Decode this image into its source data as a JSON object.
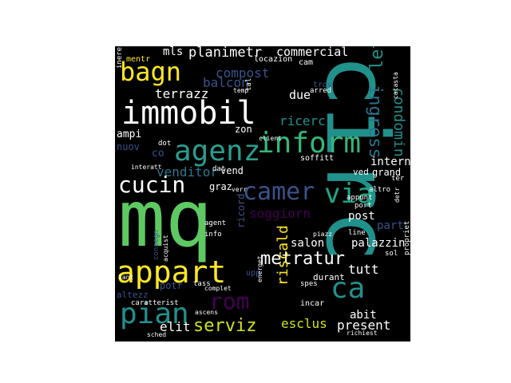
{
  "wordcloud": {
    "background": "#000000",
    "words": [
      {
        "text": "mq",
        "color": "#5ec962"
      },
      {
        "text": "circ",
        "color": "#21918c"
      },
      {
        "text": "immobil",
        "color": "#ffffff"
      },
      {
        "text": "agenz",
        "color": "#2a9d8f"
      },
      {
        "text": "inform",
        "color": "#35b779"
      },
      {
        "text": "appart",
        "color": "#fde725"
      },
      {
        "text": "pian",
        "color": "#21918c"
      },
      {
        "text": "bagn",
        "color": "#fde725"
      },
      {
        "text": "cucin",
        "color": "#ffffff"
      },
      {
        "text": "camer",
        "color": "#3b528b"
      },
      {
        "text": "via",
        "color": "#21a585"
      },
      {
        "text": "ca",
        "color": "#21918c"
      },
      {
        "text": "rom",
        "color": "#440154"
      },
      {
        "text": "metratur",
        "color": "#ffffff"
      },
      {
        "text": "serviz",
        "color": "#d2e21b"
      },
      {
        "text": "ingress",
        "color": "#2c728e"
      },
      {
        "text": "condomin",
        "color": "#21918c"
      },
      {
        "text": "riscald",
        "color": "#fde725"
      },
      {
        "text": "soggiorn",
        "color": "#440154"
      },
      {
        "text": "venditor",
        "color": "#2a788e"
      },
      {
        "text": "balcon",
        "color": "#3b528b"
      },
      {
        "text": "terrazz",
        "color": "#ffffff"
      },
      {
        "text": "planimetr",
        "color": "#ffffff"
      },
      {
        "text": "commercial",
        "color": "#ffffff"
      },
      {
        "text": "compost",
        "color": "#3b528b"
      },
      {
        "text": "due",
        "color": "#ffffff"
      },
      {
        "text": "ricerc",
        "color": "#21918c"
      },
      {
        "text": "letto",
        "color": "#21918c"
      },
      {
        "text": "esclus",
        "color": "#d2e21b"
      },
      {
        "text": "present",
        "color": "#ffffff"
      },
      {
        "text": "elit",
        "color": "#ffffff"
      },
      {
        "text": "salon",
        "color": "#ffffff"
      },
      {
        "text": "tutt",
        "color": "#ffffff"
      },
      {
        "text": "post",
        "color": "#ffffff"
      },
      {
        "text": "part",
        "color": "#3b528b"
      },
      {
        "text": "abit",
        "color": "#ffffff"
      },
      {
        "text": "palazzin",
        "color": "#ffffff"
      },
      {
        "text": "intern",
        "color": "#ffffff"
      },
      {
        "text": "grand",
        "color": "#ffffff"
      },
      {
        "text": "vend",
        "color": "#ffffff"
      },
      {
        "text": "graz",
        "color": "#ffffff"
      },
      {
        "text": "zon",
        "color": "#ffffff"
      },
      {
        "text": "ampi",
        "color": "#ffffff"
      },
      {
        "text": "nuov",
        "color": "#3b528b"
      },
      {
        "text": "co",
        "color": "#3b528b"
      },
      {
        "text": "potr",
        "color": "#3b528b"
      },
      {
        "text": "mls",
        "color": "#ffffff"
      },
      {
        "text": "altezz",
        "color": "#3b528b"
      },
      {
        "text": "durant",
        "color": "#ffffff"
      },
      {
        "text": "locazion",
        "color": "#ffffff"
      },
      {
        "text": "soffitt",
        "color": "#ffffff"
      },
      {
        "text": "ved",
        "color": "#ffffff"
      },
      {
        "text": "appunt",
        "color": "#ffffff"
      },
      {
        "text": "altro",
        "color": "#ffffff"
      },
      {
        "text": "port",
        "color": "#ffffff"
      },
      {
        "text": "line",
        "color": "#ffffff"
      },
      {
        "text": "ricord",
        "color": "#3b528b"
      },
      {
        "text": "cam",
        "color": "#ffffff"
      },
      {
        "text": "trov",
        "color": "#3b528b"
      },
      {
        "text": "incar",
        "color": "#ffffff"
      },
      {
        "text": "spes",
        "color": "#ffffff"
      },
      {
        "text": "propriet",
        "color": "#ffffff"
      },
      {
        "text": "caratterist",
        "color": "#ffffff"
      },
      {
        "text": "agent",
        "color": "#ffffff"
      },
      {
        "text": "info",
        "color": "#ffffff"
      },
      {
        "text": "consegn",
        "color": "#3b528b"
      },
      {
        "text": "acquist",
        "color": "#ffffff"
      },
      {
        "text": "client",
        "color": "#ffffff"
      },
      {
        "text": "interatt",
        "color": "#ffffff"
      },
      {
        "text": "dat",
        "color": "#ffffff"
      },
      {
        "text": "verr",
        "color": "#ffffff"
      },
      {
        "text": "dot",
        "color": "#ffffff"
      },
      {
        "text": "tass",
        "color": "#ffffff"
      },
      {
        "text": "inerent",
        "color": "#ffffff"
      },
      {
        "text": "mentr",
        "color": "#fde725"
      },
      {
        "text": "arred",
        "color": "#ffffff"
      },
      {
        "text": "catasta",
        "color": "#ffffff"
      },
      {
        "text": "temp",
        "color": "#ffffff"
      },
      {
        "text": "tal",
        "color": "#ffffff"
      },
      {
        "text": "ascens",
        "color": "#ffffff"
      },
      {
        "text": "complet",
        "color": "#ffffff"
      },
      {
        "text": "richiest",
        "color": "#ffffff"
      },
      {
        "text": "sched",
        "color": "#ffffff"
      },
      {
        "text": "ter",
        "color": "#ffffff"
      },
      {
        "text": "upp",
        "color": "#3b528b"
      },
      {
        "text": "lant",
        "color": "#ffffff"
      },
      {
        "text": "piazz",
        "color": "#ffffff"
      },
      {
        "text": "energet",
        "color": "#ffffff"
      },
      {
        "text": "sol",
        "color": "#ffffff"
      },
      {
        "text": "detr",
        "color": "#ffffff"
      }
    ]
  }
}
